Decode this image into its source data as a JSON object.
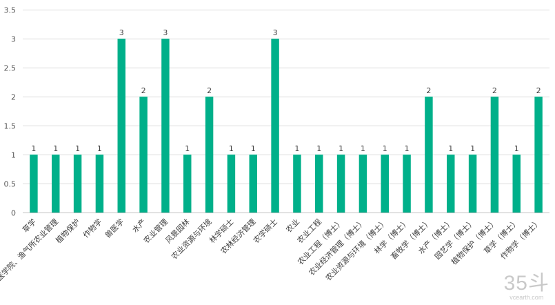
{
  "chart_data": {
    "type": "bar",
    "title": "",
    "xlabel": "",
    "ylabel": "",
    "ylim": [
      0,
      3.5
    ],
    "yticks": [
      0,
      0.5,
      1,
      1.5,
      2,
      2.5,
      3,
      3.5
    ],
    "ytick_labels": [
      "0",
      "0.5",
      "1",
      "1.5",
      "2",
      "2.5",
      "3",
      "3.5"
    ],
    "grid": "horizontal",
    "bar_color": "#00b08a",
    "categories": [
      "草学",
      "兽医学院、渔气所农业管理",
      "植物保护",
      "作物学",
      "兽医学",
      "水产",
      "农业管理",
      "风景园林",
      "农业资源与环境",
      "林学硕士",
      "农林经济管理",
      "农学硕士",
      "农业",
      "农业工程",
      "农业工程（博士）",
      "农业经济管理（博士）",
      "农业资源与环境（博士）",
      "林学（博士）",
      "畜牧学（博士）",
      "水产（博士）",
      "园艺学（博士）",
      "植物保护（博士）",
      "草学（博士）",
      "作物学（博士）"
    ],
    "values": [
      1,
      1,
      1,
      1,
      3,
      2,
      3,
      1,
      2,
      1,
      1,
      3,
      1,
      1,
      1,
      1,
      1,
      1,
      2,
      1,
      1,
      2,
      1,
      2
    ],
    "data_labels": [
      "1",
      "1",
      "1",
      "1",
      "3",
      "2",
      "3",
      "1",
      "2",
      "1",
      "1",
      "3",
      "1",
      "1",
      "1",
      "1",
      "1",
      "1",
      "2",
      "1",
      "1",
      "2",
      "1",
      "2"
    ]
  },
  "watermark": {
    "big": "35斗",
    "small": "vcearth.com"
  }
}
